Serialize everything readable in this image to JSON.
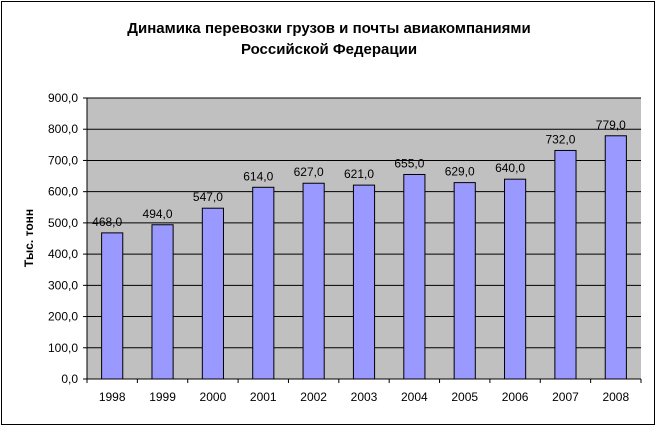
{
  "chart_data": {
    "type": "bar",
    "title_line1": "Динамика перевозки грузов и почты авиакомпаниями",
    "title_line2": "Российской Федерации",
    "xlabel": "",
    "ylabel": "Тыс. тонн",
    "categories": [
      "1998",
      "1999",
      "2000",
      "2001",
      "2002",
      "2003",
      "2004",
      "2005",
      "2006",
      "2007",
      "2008"
    ],
    "values": [
      468.0,
      494.0,
      547.0,
      614.0,
      627.0,
      621.0,
      655.0,
      629.0,
      640.0,
      732.0,
      779.0
    ],
    "value_labels": [
      "468,0",
      "494,0",
      "547,0",
      "614,0",
      "627,0",
      "621,0",
      "655,0",
      "629,0",
      "640,0",
      "732,0",
      "779,0"
    ],
    "ylim": [
      0,
      900
    ],
    "y_ticks": [
      "0,0",
      "100,0",
      "200,0",
      "300,0",
      "400,0",
      "500,0",
      "600,0",
      "700,0",
      "800,0",
      "900,0"
    ],
    "grid": true,
    "colors": {
      "bar_fill": "#9999ff",
      "bar_stroke": "#000000",
      "plot_background": "#c0c0c0",
      "gridline": "#000000"
    }
  }
}
